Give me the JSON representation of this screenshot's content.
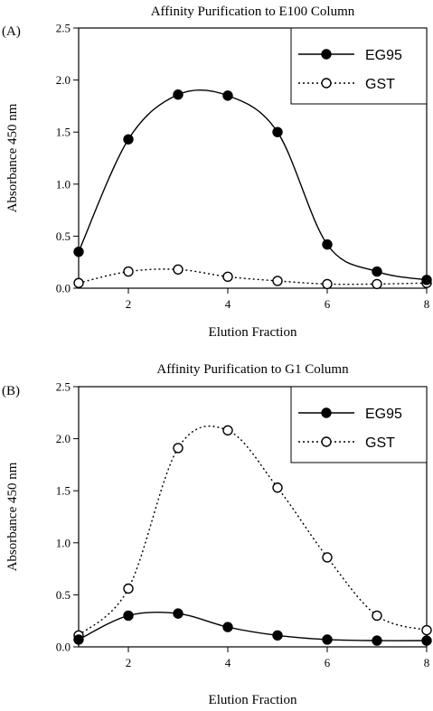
{
  "chart_data": [
    {
      "type": "line",
      "panel_label": "(A)",
      "title": "Affinity Purification to E100 Column",
      "xlabel": "Elution Fraction",
      "ylabel": "Absorbance 450 nm",
      "xlim": [
        1,
        8
      ],
      "ylim": [
        0,
        2.5
      ],
      "x_ticks": [
        "2",
        "4",
        "6",
        "8"
      ],
      "y_ticks": [
        "0.0",
        "0.5",
        "1.0",
        "1.5",
        "2.0",
        "2.5"
      ],
      "grid": false,
      "legend_position": "top-right",
      "x": [
        1,
        2,
        3,
        4,
        5,
        6,
        7,
        8
      ],
      "series": [
        {
          "name": "EG95",
          "style": "solid",
          "marker": "filled-circle",
          "values": [
            0.35,
            1.43,
            1.86,
            1.85,
            1.5,
            0.42,
            0.16,
            0.08
          ]
        },
        {
          "name": "GST",
          "style": "dotted",
          "marker": "open-circle",
          "values": [
            0.05,
            0.16,
            0.18,
            0.11,
            0.07,
            0.04,
            0.04,
            0.05
          ]
        }
      ]
    },
    {
      "type": "line",
      "panel_label": "(B)",
      "title": "Affinity Purification to G1 Column",
      "xlabel": "Elution Fraction",
      "ylabel": "Absorbance 450 nm",
      "xlim": [
        1,
        8
      ],
      "ylim": [
        0,
        2.5
      ],
      "x_ticks": [
        "2",
        "4",
        "6",
        "8"
      ],
      "y_ticks": [
        "0.0",
        "0.5",
        "1.0",
        "1.5",
        "2.0",
        "2.5"
      ],
      "grid": false,
      "legend_position": "top-right",
      "x": [
        1,
        2,
        3,
        4,
        5,
        6,
        7,
        8
      ],
      "series": [
        {
          "name": "EG95",
          "style": "solid",
          "marker": "filled-circle",
          "values": [
            0.07,
            0.3,
            0.32,
            0.19,
            0.11,
            0.07,
            0.06,
            0.06
          ]
        },
        {
          "name": "GST",
          "style": "dotted",
          "marker": "open-circle",
          "values": [
            0.11,
            0.56,
            1.91,
            2.08,
            1.53,
            0.86,
            0.3,
            0.16
          ]
        }
      ]
    }
  ]
}
